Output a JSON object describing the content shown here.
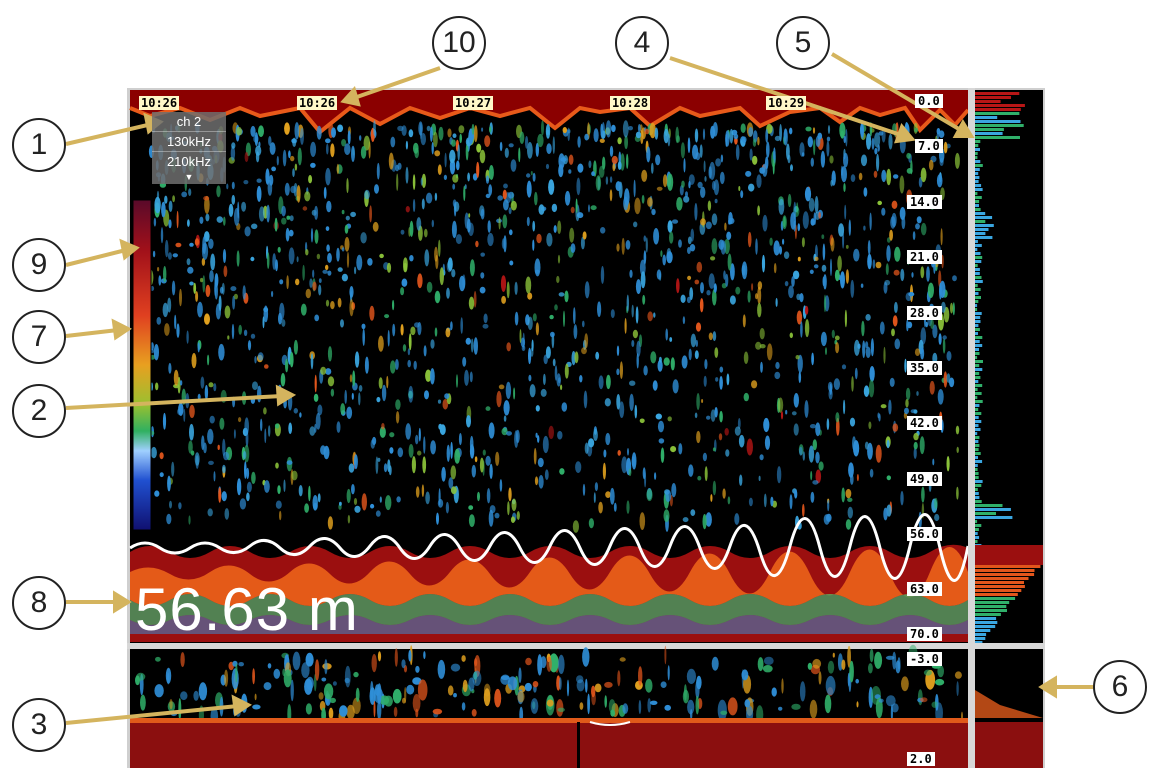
{
  "echogram": {
    "time_labels": [
      "10:26",
      "10:26",
      "10:27",
      "10:28",
      "10:29"
    ],
    "depth_labels": [
      "0.0",
      "7.0",
      "14.0",
      "21.0",
      "28.0",
      "35.0",
      "42.0",
      "49.0",
      "56.0",
      "63.0",
      "70.0"
    ],
    "bottom_scale_labels": [
      "-3.0",
      "2.0"
    ],
    "channel": {
      "label": "ch 2",
      "frequencies": [
        "130kHz",
        "210kHz"
      ],
      "dropdown_icon": "triangle-down-icon"
    },
    "depth_readout": "56.63 m"
  },
  "callouts": [
    "1",
    "2",
    "3",
    "4",
    "5",
    "6",
    "7",
    "8",
    "9",
    "10"
  ],
  "colors": {
    "background": "#000000",
    "surface_band": "#8b0000",
    "bottom_band": "#8b1010",
    "annotation_arrow": "#d2b05a",
    "bottom_line": "#ffffff",
    "panel_border": "#bbbbbb"
  }
}
